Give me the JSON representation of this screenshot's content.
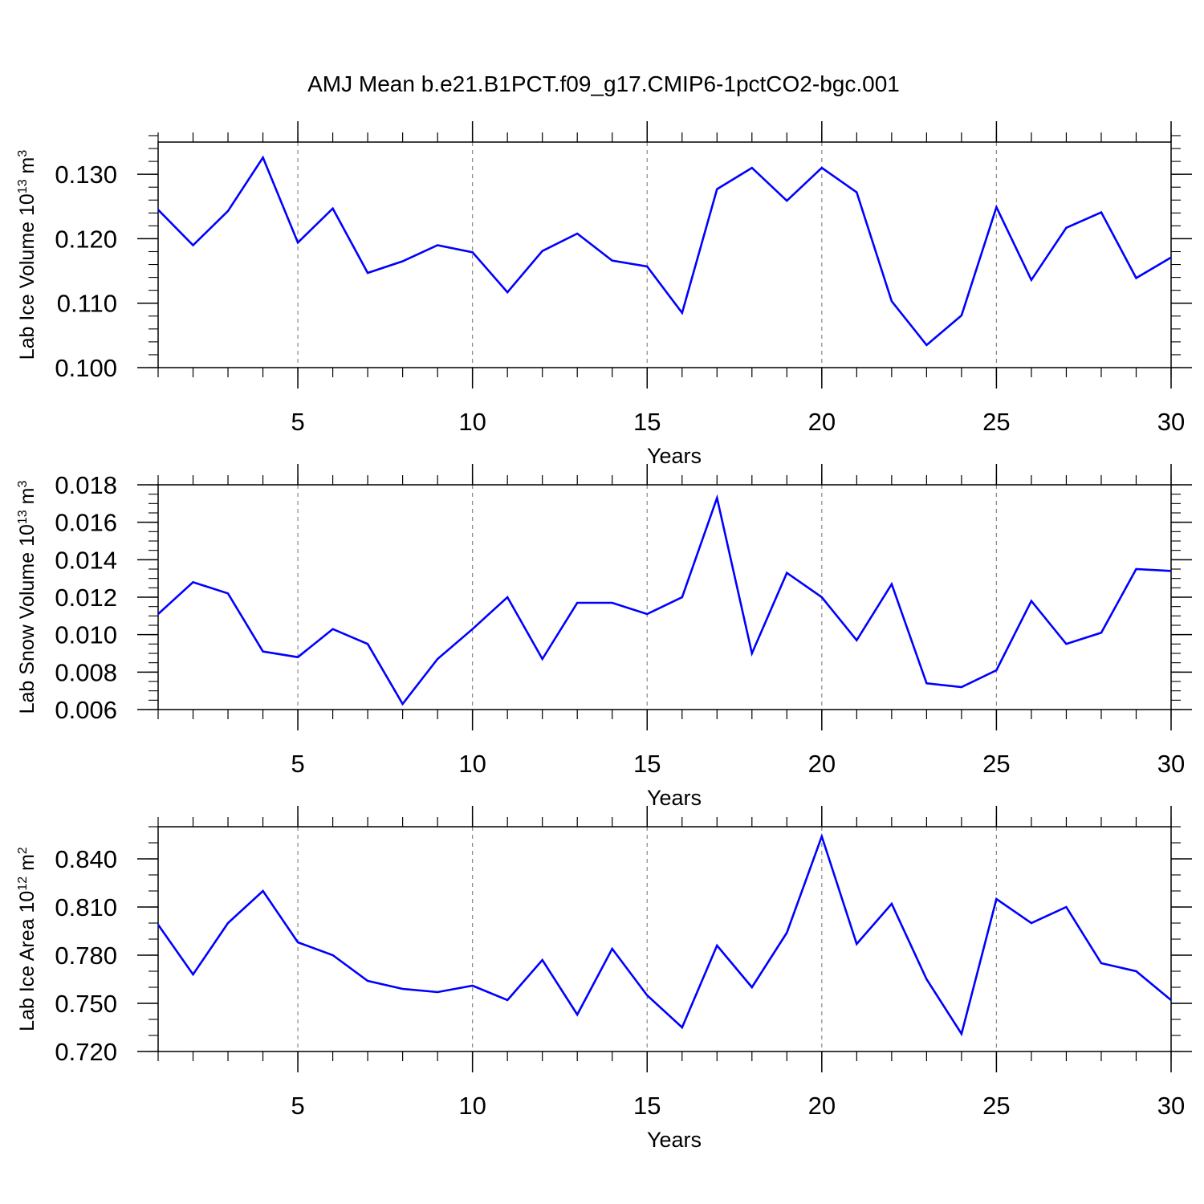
{
  "figure_title": "AMJ Mean b.e21.B1PCT.f09_g17.CMIP6-1pctCO2-bgc.001",
  "colors": {
    "line": "#0000ff",
    "axis": "#000000",
    "grid": "#888888"
  },
  "chart_data": [
    {
      "type": "line",
      "xlabel": "Years",
      "ylabel": {
        "text": "Lab Ice Volume 10",
        "sup": "13",
        "unit": " m",
        "unit_sup": "3"
      },
      "xlim": [
        1,
        30
      ],
      "ylim": [
        0.1,
        0.135
      ],
      "xticks": [
        5,
        10,
        15,
        20,
        25,
        30
      ],
      "xtick_labels": [
        "5",
        "10",
        "15",
        "20",
        "25",
        "30"
      ],
      "yticks": [
        0.1,
        0.11,
        0.12,
        0.13
      ],
      "ytick_labels": [
        "0.100",
        "0.110",
        "0.120",
        "0.130"
      ],
      "yminor_step": 0.002,
      "grid": "vertical dashed at major x ticks",
      "x": [
        1,
        2,
        3,
        4,
        5,
        6,
        7,
        8,
        9,
        10,
        11,
        12,
        13,
        14,
        15,
        16,
        17,
        18,
        19,
        20,
        21,
        22,
        23,
        24,
        25,
        26,
        27,
        28,
        29,
        30
      ],
      "series": [
        {
          "name": "Lab Ice Volume",
          "values": [
            0.1245,
            0.119,
            0.1243,
            0.1326,
            0.1194,
            0.1247,
            0.1147,
            0.1165,
            0.119,
            0.1179,
            0.1117,
            0.1181,
            0.1208,
            0.1166,
            0.1157,
            0.1085,
            0.1277,
            0.131,
            0.1259,
            0.131,
            0.1272,
            0.1103,
            0.1035,
            0.1081,
            0.1249,
            0.1136,
            0.1217,
            0.1241,
            0.1139,
            0.1171
          ]
        }
      ]
    },
    {
      "type": "line",
      "xlabel": "Years",
      "ylabel": {
        "text": "Lab Snow Volume 10",
        "sup": "13",
        "unit": " m",
        "unit_sup": "3"
      },
      "xlim": [
        1,
        30
      ],
      "ylim": [
        0.006,
        0.018
      ],
      "xticks": [
        5,
        10,
        15,
        20,
        25,
        30
      ],
      "xtick_labels": [
        "5",
        "10",
        "15",
        "20",
        "25",
        "30"
      ],
      "yticks": [
        0.006,
        0.008,
        0.01,
        0.012,
        0.014,
        0.016,
        0.018
      ],
      "ytick_labels": [
        "0.006",
        "0.008",
        "0.010",
        "0.012",
        "0.014",
        "0.016",
        "0.018"
      ],
      "yminor_step": 0.0005,
      "grid": "vertical dashed at major x ticks",
      "x": [
        1,
        2,
        3,
        4,
        5,
        6,
        7,
        8,
        9,
        10,
        11,
        12,
        13,
        14,
        15,
        16,
        17,
        18,
        19,
        20,
        21,
        22,
        23,
        24,
        25,
        26,
        27,
        28,
        29,
        30
      ],
      "series": [
        {
          "name": "Lab Snow Volume",
          "values": [
            0.0111,
            0.0128,
            0.0122,
            0.0091,
            0.0088,
            0.0103,
            0.0095,
            0.0063,
            0.0087,
            0.0103,
            0.012,
            0.0087,
            0.0117,
            0.0117,
            0.0111,
            0.012,
            0.0173,
            0.009,
            0.0133,
            0.012,
            0.0097,
            0.0127,
            0.0074,
            0.0072,
            0.0081,
            0.0118,
            0.0095,
            0.0101,
            0.0135,
            0.0134
          ]
        }
      ]
    },
    {
      "type": "line",
      "xlabel": "Years",
      "ylabel": {
        "text": "Lab Ice Area 10",
        "sup": "12",
        "unit": " m",
        "unit_sup": "2"
      },
      "xlim": [
        1,
        30
      ],
      "ylim": [
        0.72,
        0.86
      ],
      "xticks": [
        5,
        10,
        15,
        20,
        25,
        30
      ],
      "xtick_labels": [
        "5",
        "10",
        "15",
        "20",
        "25",
        "30"
      ],
      "yticks": [
        0.72,
        0.75,
        0.78,
        0.81,
        0.84
      ],
      "ytick_labels": [
        "0.720",
        "0.750",
        "0.780",
        "0.810",
        "0.840"
      ],
      "yminor_step": 0.01,
      "grid": "vertical dashed at major x ticks",
      "x": [
        1,
        2,
        3,
        4,
        5,
        6,
        7,
        8,
        9,
        10,
        11,
        12,
        13,
        14,
        15,
        16,
        17,
        18,
        19,
        20,
        21,
        22,
        23,
        24,
        25,
        26,
        27,
        28,
        29,
        30
      ],
      "series": [
        {
          "name": "Lab Ice Area",
          "values": [
            0.799,
            0.768,
            0.8,
            0.82,
            0.788,
            0.78,
            0.764,
            0.759,
            0.757,
            0.761,
            0.752,
            0.777,
            0.743,
            0.784,
            0.755,
            0.735,
            0.786,
            0.76,
            0.794,
            0.854,
            0.787,
            0.812,
            0.765,
            0.731,
            0.815,
            0.8,
            0.81,
            0.775,
            0.77,
            0.752
          ]
        }
      ]
    }
  ]
}
